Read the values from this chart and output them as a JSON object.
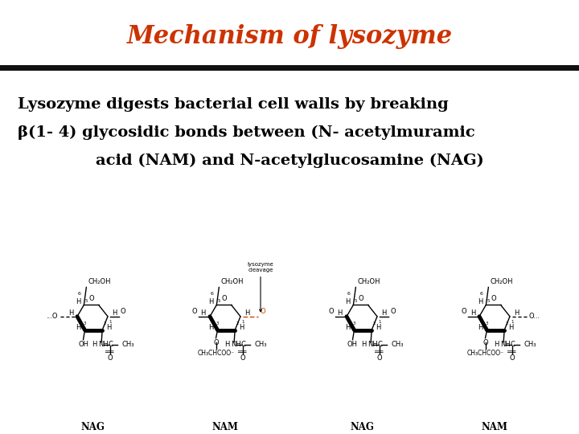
{
  "title": "Mechanism of lysozyme",
  "title_color": "#CC3300",
  "title_fontsize": 22,
  "title_fontstyle": "italic",
  "title_fontweight": "bold",
  "separator_color": "#111111",
  "separator_linewidth": 5,
  "bg_color": "#FFFFFF",
  "text_line1": "Lysozyme digests bacterial cell walls by breaking",
  "text_line2": "β(1- 4) glycosidic bonds between (N- acetylmuramic",
  "text_line3": "acid (NAM) and N-acetylglucosamine (NAG)",
  "text_color": "#000000",
  "text_fontsize": 14,
  "text_fontweight": "bold",
  "cleavage_color": "#CC4400",
  "label_fontsize": 8.5,
  "structure_fontsize": 6.0
}
